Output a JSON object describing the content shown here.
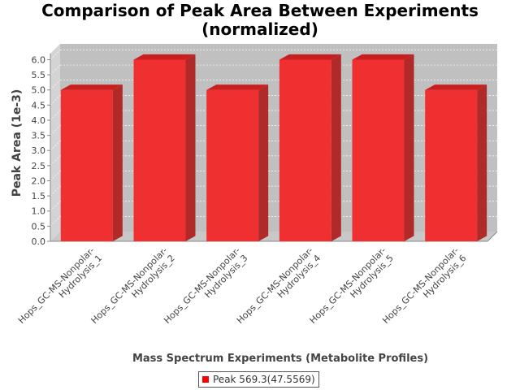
{
  "chart_data": {
    "type": "bar",
    "title_lines": [
      "Comparison of Peak Area Between Experiments",
      "(normalized)"
    ],
    "xlabel": "Mass Spectrum Experiments (Metabolite Profiles)",
    "ylabel": "Peak Area (1e-3)",
    "categories": [
      [
        "Hops_GC-MS-Nonpolar-",
        "Hydrolysis_1"
      ],
      [
        "Hops_GC-MS-Nonpolar-",
        "Hydrolysis_2"
      ],
      [
        "Hops_GC-MS-Nonpolar-",
        "Hydrolysis_3"
      ],
      [
        "Hops_GC-MS-Nonpolar-",
        "Hydrolysis_4"
      ],
      [
        "Hops_GC-MS-Nonpolar-",
        "Hydrolysis_5"
      ],
      [
        "Hops_GC-MS-Nonpolar-",
        "Hydrolysis_6"
      ]
    ],
    "series": [
      {
        "name": "Peak 569.3(47.5569)",
        "values": [
          5.0,
          6.0,
          5.0,
          6.0,
          6.0,
          5.0
        ],
        "color": "#ff0000"
      }
    ],
    "ylim": [
      0,
      6.2
    ],
    "yticks": [
      "0.0",
      "0.5",
      "1.0",
      "1.5",
      "2.0",
      "2.5",
      "3.0",
      "3.5",
      "4.0",
      "4.5",
      "5.0",
      "5.5",
      "6.0"
    ],
    "grid": true,
    "legend_position": "bottom",
    "plot_background": "#c0c0c0",
    "bar_front_color": "#f03030",
    "bar_top_color": "#c82020",
    "bar_side_color": "#b02a2a"
  }
}
